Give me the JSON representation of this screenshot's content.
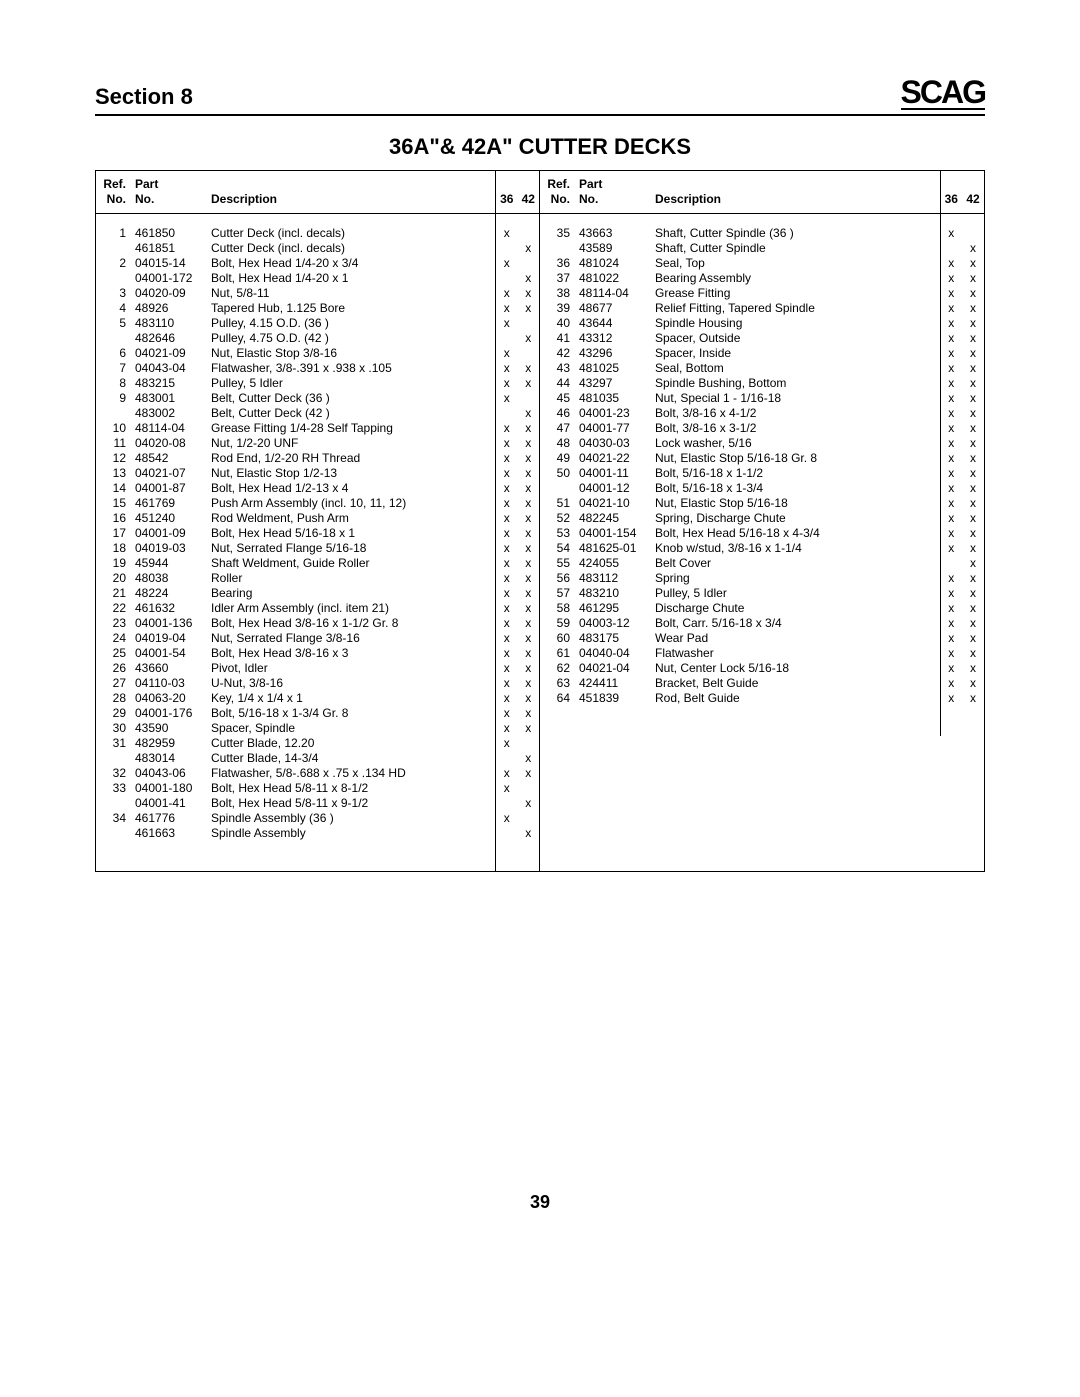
{
  "header": {
    "section": "Section 8",
    "logo": "SCAG"
  },
  "title": "36A\"& 42A\" CUTTER DECKS",
  "page_number": "39",
  "columns": {
    "ref": "Ref.\nNo.",
    "part": "Part\nNo.",
    "desc": "Description",
    "c36": "36",
    "c42": "42"
  },
  "left": [
    {
      "ref": "1",
      "part": "461850",
      "desc": "Cutter Deck (incl. decals)",
      "c36": "x",
      "c42": ""
    },
    {
      "ref": "",
      "part": "461851",
      "desc": "Cutter Deck (incl. decals)",
      "c36": "",
      "c42": "x"
    },
    {
      "ref": "2",
      "part": "04015-14",
      "desc": "Bolt, Hex Head 1/4-20 x 3/4",
      "c36": "x",
      "c42": ""
    },
    {
      "ref": "",
      "part": "04001-172",
      "desc": "Bolt, Hex Head 1/4-20 x 1",
      "c36": "",
      "c42": "x"
    },
    {
      "ref": "3",
      "part": "04020-09",
      "desc": "Nut, 5/8-11",
      "c36": "x",
      "c42": "x"
    },
    {
      "ref": "4",
      "part": "48926",
      "desc": "Tapered Hub, 1.125  Bore",
      "c36": "x",
      "c42": "x"
    },
    {
      "ref": "5",
      "part": "483110",
      "desc": "Pulley, 4.15 O.D. (36 )",
      "c36": "x",
      "c42": ""
    },
    {
      "ref": "",
      "part": "482646",
      "desc": "Pulley, 4.75 O.D. (42 )",
      "c36": "",
      "c42": "x"
    },
    {
      "ref": "6",
      "part": "04021-09",
      "desc": "Nut, Elastic Stop 3/8-16",
      "c36": "x",
      "c42": ""
    },
    {
      "ref": "7",
      "part": "04043-04",
      "desc": "Flatwasher, 3/8-.391 x .938 x .105",
      "c36": "x",
      "c42": "x"
    },
    {
      "ref": "8",
      "part": "483215",
      "desc": "Pulley, 5  Idler",
      "c36": "x",
      "c42": "x"
    },
    {
      "ref": "9",
      "part": "483001",
      "desc": "Belt, Cutter Deck (36 )",
      "c36": "x",
      "c42": ""
    },
    {
      "ref": "",
      "part": "483002",
      "desc": "Belt, Cutter Deck (42 )",
      "c36": "",
      "c42": "x"
    },
    {
      "ref": "10",
      "part": "48114-04",
      "desc": "Grease Fitting 1/4-28 Self Tapping",
      "c36": "x",
      "c42": "x"
    },
    {
      "ref": "11",
      "part": "04020-08",
      "desc": "Nut, 1/2-20 UNF",
      "c36": "x",
      "c42": "x"
    },
    {
      "ref": "12",
      "part": "48542",
      "desc": "Rod End, 1/2-20 RH Thread",
      "c36": "x",
      "c42": "x"
    },
    {
      "ref": "13",
      "part": "04021-07",
      "desc": "Nut, Elastic Stop 1/2-13",
      "c36": "x",
      "c42": "x"
    },
    {
      "ref": "14",
      "part": "04001-87",
      "desc": "Bolt, Hex Head 1/2-13 x 4",
      "c36": "x",
      "c42": "x"
    },
    {
      "ref": "15",
      "part": "461769",
      "desc": "Push Arm Assembly (incl. 10, 11, 12)",
      "c36": "x",
      "c42": "x"
    },
    {
      "ref": "16",
      "part": "451240",
      "desc": "Rod Weldment, Push Arm",
      "c36": "x",
      "c42": "x"
    },
    {
      "ref": "17",
      "part": "04001-09",
      "desc": "Bolt, Hex Head 5/16-18 x 1",
      "c36": "x",
      "c42": "x"
    },
    {
      "ref": "18",
      "part": "04019-03",
      "desc": "Nut, Serrated Flange 5/16-18",
      "c36": "x",
      "c42": "x"
    },
    {
      "ref": "19",
      "part": "45944",
      "desc": "Shaft Weldment, Guide Roller",
      "c36": "x",
      "c42": "x"
    },
    {
      "ref": "20",
      "part": "48038",
      "desc": "Roller",
      "c36": "x",
      "c42": "x"
    },
    {
      "ref": "21",
      "part": "48224",
      "desc": "Bearing",
      "c36": "x",
      "c42": "x"
    },
    {
      "ref": "22",
      "part": "461632",
      "desc": "Idler Arm Assembly (incl. item 21)",
      "c36": "x",
      "c42": "x"
    },
    {
      "ref": "23",
      "part": "04001-136",
      "desc": "Bolt, Hex Head 3/8-16 x 1-1/2  Gr. 8",
      "c36": "x",
      "c42": "x"
    },
    {
      "ref": "24",
      "part": "04019-04",
      "desc": "Nut, Serrated Flange 3/8-16",
      "c36": "x",
      "c42": "x"
    },
    {
      "ref": "25",
      "part": "04001-54",
      "desc": "Bolt, Hex Head 3/8-16 x 3",
      "c36": "x",
      "c42": "x"
    },
    {
      "ref": "26",
      "part": "43660",
      "desc": "Pivot, Idler",
      "c36": "x",
      "c42": "x"
    },
    {
      "ref": "27",
      "part": "04110-03",
      "desc": "U-Nut, 3/8-16",
      "c36": "x",
      "c42": "x"
    },
    {
      "ref": "28",
      "part": "04063-20",
      "desc": "Key, 1/4 x 1/4 x 1",
      "c36": "x",
      "c42": "x"
    },
    {
      "ref": "29",
      "part": "04001-176",
      "desc": "Bolt, 5/16-18 x 1-3/4  Gr. 8",
      "c36": "x",
      "c42": "x"
    },
    {
      "ref": "30",
      "part": "43590",
      "desc": "Spacer, Spindle",
      "c36": "x",
      "c42": "x"
    },
    {
      "ref": "31",
      "part": "482959",
      "desc": "Cutter Blade, 12.20",
      "c36": "x",
      "c42": ""
    },
    {
      "ref": "",
      "part": "483014",
      "desc": "Cutter Blade, 14-3/4",
      "c36": "",
      "c42": "x"
    },
    {
      "ref": "32",
      "part": "04043-06",
      "desc": "Flatwasher, 5/8-.688 x .75 x .134 HD",
      "c36": "x",
      "c42": "x"
    },
    {
      "ref": "33",
      "part": "04001-180",
      "desc": "Bolt, Hex Head 5/8-11 x 8-1/2",
      "c36": "x",
      "c42": ""
    },
    {
      "ref": "",
      "part": "04001-41",
      "desc": "Bolt, Hex Head 5/8-11 x 9-1/2",
      "c36": "",
      "c42": "x"
    },
    {
      "ref": "34",
      "part": "461776",
      "desc": "Spindle Assembly (36 )",
      "c36": "x",
      "c42": ""
    },
    {
      "ref": "",
      "part": "461663",
      "desc": "Spindle Assembly",
      "c36": "",
      "c42": "x"
    }
  ],
  "right": [
    {
      "ref": "35",
      "part": "43663",
      "desc": "Shaft, Cutter Spindle (36 )",
      "c36": "x",
      "c42": ""
    },
    {
      "ref": "",
      "part": "43589",
      "desc": "Shaft, Cutter Spindle",
      "c36": "",
      "c42": "x"
    },
    {
      "ref": "36",
      "part": "481024",
      "desc": "Seal, Top",
      "c36": "x",
      "c42": "x"
    },
    {
      "ref": "37",
      "part": "481022",
      "desc": "Bearing Assembly",
      "c36": "x",
      "c42": "x"
    },
    {
      "ref": "38",
      "part": "48114-04",
      "desc": "Grease Fitting",
      "c36": "x",
      "c42": "x"
    },
    {
      "ref": "39",
      "part": "48677",
      "desc": "Relief Fitting, Tapered Spindle",
      "c36": "x",
      "c42": "x"
    },
    {
      "ref": "40",
      "part": "43644",
      "desc": "Spindle Housing",
      "c36": "x",
      "c42": "x"
    },
    {
      "ref": "41",
      "part": "43312",
      "desc": "Spacer, Outside",
      "c36": "x",
      "c42": "x"
    },
    {
      "ref": "42",
      "part": "43296",
      "desc": "Spacer, Inside",
      "c36": "x",
      "c42": "x"
    },
    {
      "ref": "43",
      "part": "481025",
      "desc": "Seal, Bottom",
      "c36": "x",
      "c42": "x"
    },
    {
      "ref": "44",
      "part": "43297",
      "desc": "Spindle Bushing, Bottom",
      "c36": "x",
      "c42": "x"
    },
    {
      "ref": "45",
      "part": "481035",
      "desc": "Nut, Special 1 - 1/16-18",
      "c36": "x",
      "c42": "x"
    },
    {
      "ref": "46",
      "part": "04001-23",
      "desc": "Bolt, 3/8-16 x 4-1/2",
      "c36": "x",
      "c42": "x"
    },
    {
      "ref": "47",
      "part": "04001-77",
      "desc": "Bolt, 3/8-16 x 3-1/2",
      "c36": "x",
      "c42": "x"
    },
    {
      "ref": "48",
      "part": "04030-03",
      "desc": "Lock washer, 5/16",
      "c36": "x",
      "c42": "x"
    },
    {
      "ref": "49",
      "part": "04021-22",
      "desc": "Nut, Elastic Stop 5/16-18 Gr. 8",
      "c36": "x",
      "c42": "x"
    },
    {
      "ref": "50",
      "part": "04001-11",
      "desc": "Bolt, 5/16-18 x 1-1/2",
      "c36": "x",
      "c42": "x"
    },
    {
      "ref": "",
      "part": "04001-12",
      "desc": "Bolt, 5/16-18 x 1-3/4",
      "c36": "x",
      "c42": "x"
    },
    {
      "ref": "51",
      "part": "04021-10",
      "desc": "Nut, Elastic Stop 5/16-18",
      "c36": "x",
      "c42": "x"
    },
    {
      "ref": "52",
      "part": "482245",
      "desc": "Spring, Discharge Chute",
      "c36": "x",
      "c42": "x"
    },
    {
      "ref": "53",
      "part": "04001-154",
      "desc": "Bolt, Hex Head 5/16-18 x 4-3/4",
      "c36": "x",
      "c42": "x"
    },
    {
      "ref": "54",
      "part": "481625-01",
      "desc": "Knob w/stud, 3/8-16 x 1-1/4",
      "c36": "x",
      "c42": "x"
    },
    {
      "ref": "55",
      "part": "424055",
      "desc": "Belt Cover",
      "c36": "",
      "c42": "x"
    },
    {
      "ref": "56",
      "part": "483112",
      "desc": "Spring",
      "c36": "x",
      "c42": "x"
    },
    {
      "ref": "57",
      "part": "483210",
      "desc": "Pulley, 5  Idler",
      "c36": "x",
      "c42": "x"
    },
    {
      "ref": "58",
      "part": "461295",
      "desc": "Discharge Chute",
      "c36": "x",
      "c42": "x"
    },
    {
      "ref": "59",
      "part": "04003-12",
      "desc": "Bolt, Carr. 5/16-18 x 3/4",
      "c36": "x",
      "c42": "x"
    },
    {
      "ref": "60",
      "part": "483175",
      "desc": "Wear Pad",
      "c36": "x",
      "c42": "x"
    },
    {
      "ref": "61",
      "part": "04040-04",
      "desc": "Flatwasher",
      "c36": "x",
      "c42": "x"
    },
    {
      "ref": "62",
      "part": "04021-04",
      "desc": "Nut, Center Lock 5/16-18",
      "c36": "x",
      "c42": "x"
    },
    {
      "ref": "63",
      "part": "424411",
      "desc": "Bracket, Belt Guide",
      "c36": "x",
      "c42": "x"
    },
    {
      "ref": "64",
      "part": "451839",
      "desc": "Rod, Belt Guide",
      "c36": "x",
      "c42": "x"
    }
  ]
}
